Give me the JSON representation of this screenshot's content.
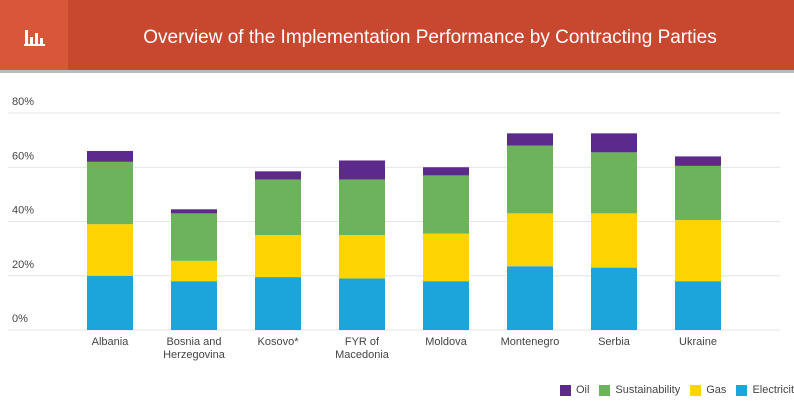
{
  "chart_data": {
    "type": "bar",
    "stacked": true,
    "title": "Overview of the Implementation Performance by Contracting Parties",
    "categories": [
      "Albania",
      "Bosnia and Herzegovina",
      "Kosovo*",
      "FYR of Macedonia",
      "Moldova",
      "Montenegro",
      "Serbia",
      "Ukraine"
    ],
    "series": [
      {
        "name": "Oil",
        "color": "#5b2a8a",
        "values": [
          4,
          1.5,
          3,
          7,
          3,
          4.5,
          7,
          3.5
        ]
      },
      {
        "name": "Sustainability",
        "color": "#6db35b",
        "values": [
          23,
          17.5,
          20.5,
          20.5,
          21.5,
          25,
          22.5,
          20
        ]
      },
      {
        "name": "Gas",
        "color": "#ffd400",
        "values": [
          19,
          7.5,
          15.5,
          16,
          17.5,
          19.5,
          20,
          22.5
        ]
      },
      {
        "name": "Electricit",
        "color": "#1ba5d9",
        "values": [
          20,
          18,
          19.5,
          19,
          18,
          23.5,
          23,
          18
        ]
      }
    ],
    "ylim": [
      0,
      80
    ],
    "yticks": [
      {
        "value": 0,
        "label": "0%"
      },
      {
        "value": 20,
        "label": "20%"
      },
      {
        "value": 40,
        "label": "40%"
      },
      {
        "value": 60,
        "label": "60%"
      },
      {
        "value": 80,
        "label": "80%"
      }
    ],
    "grid": true
  }
}
